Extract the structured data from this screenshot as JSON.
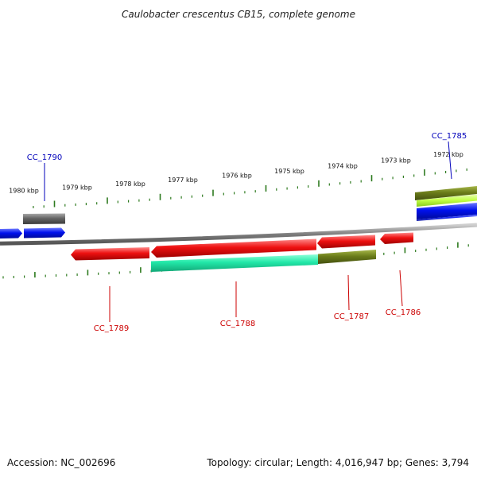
{
  "title": "Caulobacter crescentus CB15, complete genome",
  "accession": "Accession: NC_002696",
  "summary": "Topology: circular; Length: 4,016,947 bp; Genes: 3,794",
  "colors": {
    "backbone": "#888888",
    "tick": "#2d7a1e",
    "gene_label_forward": "#0000bb",
    "gene_label_reverse": "#cc0000",
    "forward_gene": "#0011ee",
    "reverse_gene": "#ee1111",
    "gray_feature": "#666666",
    "olive_feature": "#6b7d1a",
    "green_feature": "#22e8a8",
    "lime_feature": "#c0ff40"
  },
  "ticks": [
    {
      "label": "1980 kbp"
    },
    {
      "label": "1979 kbp"
    },
    {
      "label": "1978 kbp"
    },
    {
      "label": "1977 kbp"
    },
    {
      "label": "1976 kbp"
    },
    {
      "label": "1975 kbp"
    },
    {
      "label": "1974 kbp"
    },
    {
      "label": "1973 kbp"
    },
    {
      "label": "1972 kbp"
    }
  ],
  "genes": [
    {
      "name": "CC_1790",
      "strand": "forward"
    },
    {
      "name": "CC_1789",
      "strand": "reverse"
    },
    {
      "name": "CC_1788",
      "strand": "reverse"
    },
    {
      "name": "CC_1787",
      "strand": "reverse"
    },
    {
      "name": "CC_1786",
      "strand": "reverse"
    },
    {
      "name": "CC_1785",
      "strand": "forward"
    }
  ]
}
